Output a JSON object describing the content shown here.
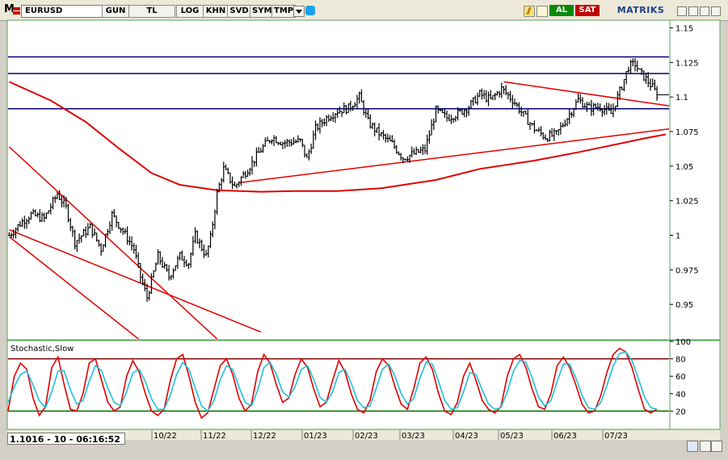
{
  "toolbar": {
    "logo": "M",
    "symbol": "EURUSD",
    "buttons": [
      "GUN",
      "TL",
      "LOG",
      "KHN",
      "SVD",
      "SYM",
      "TMP"
    ],
    "buy_label": "AL",
    "sell_label": "SAT",
    "brand": "MATRIKS",
    "icons": [
      "flag-icon",
      "dropdown-icon",
      "bird-icon",
      "bolt-icon",
      "refresh-icon",
      "minimize-icon",
      "restore-icon",
      "close-icon"
    ]
  },
  "status": {
    "readout": "1.1016 - 10 - 06:16:52"
  },
  "colors": {
    "panel_bg": "#ffffff",
    "frame_border": "#58a558",
    "price_bar": "#000000",
    "channel_line": "#e00000",
    "support_line": "#00007f",
    "stoch_k": "#e00000",
    "stoch_d": "#20c0d8",
    "overbought": "#800000",
    "oversold": "#007000"
  },
  "chart_data": [
    {
      "type": "ohlc",
      "title": "",
      "series_name": "EURUSD",
      "y_ticks": [
        "1.15",
        "1.125",
        "1.1",
        "1.075",
        "1.05",
        "1.025",
        "1",
        "0.975",
        "0.95"
      ],
      "ylim": [
        0.925,
        1.155
      ],
      "x_ticks": [
        "10/22",
        "11/22",
        "12/22",
        "01/23",
        "02/23",
        "03/23",
        "04/23",
        "05/23",
        "06/23",
        "07/23"
      ],
      "grid": false,
      "horizontal_levels": [
        1.129,
        1.117,
        1.0915
      ],
      "moving_average": [
        [
          0,
          1.111
        ],
        [
          19,
          1.0975
        ],
        [
          35,
          1.082
        ],
        [
          50,
          1.063
        ],
        [
          65,
          1.045
        ],
        [
          78,
          1.0365
        ],
        [
          95,
          1.0325
        ],
        [
          115,
          1.0315
        ],
        [
          130,
          1.032
        ],
        [
          150,
          1.032
        ],
        [
          170,
          1.034
        ],
        [
          195,
          1.04
        ],
        [
          215,
          1.048
        ],
        [
          240,
          1.054
        ],
        [
          260,
          1.06
        ],
        [
          275,
          1.065
        ],
        [
          290,
          1.07
        ],
        [
          300,
          1.073
        ]
      ],
      "trend_lines": [
        {
          "from": [
            0,
            1.064
          ],
          "to": [
            95,
            0.925
          ]
        },
        {
          "from": [
            0,
            0.999
          ],
          "to": [
            95,
            0.88
          ]
        },
        {
          "from": [
            0,
            1.004
          ],
          "to": [
            115,
            0.93
          ]
        },
        {
          "from": [
            105,
            1.038
          ],
          "to": [
            302,
            1.077
          ]
        },
        {
          "from": [
            226,
            1.111
          ],
          "to": [
            302,
            1.0935
          ]
        }
      ],
      "price_anchors": [
        [
          0,
          1.0
        ],
        [
          6,
          1.01
        ],
        [
          10,
          1.015
        ],
        [
          16,
          1.012
        ],
        [
          22,
          1.03
        ],
        [
          26,
          1.02
        ],
        [
          30,
          0.995
        ],
        [
          37,
          1.006
        ],
        [
          42,
          0.99
        ],
        [
          47,
          1.015
        ],
        [
          54,
          0.998
        ],
        [
          57,
          0.99
        ],
        [
          60,
          0.97
        ],
        [
          63,
          0.955
        ],
        [
          68,
          0.985
        ],
        [
          73,
          0.97
        ],
        [
          78,
          0.985
        ],
        [
          82,
          0.98
        ],
        [
          85,
          1.0
        ],
        [
          90,
          0.985
        ],
        [
          92,
          0.998
        ],
        [
          95,
          1.03
        ],
        [
          98,
          1.048
        ],
        [
          103,
          1.035
        ],
        [
          110,
          1.05
        ],
        [
          115,
          1.062
        ],
        [
          120,
          1.071
        ],
        [
          125,
          1.067
        ],
        [
          133,
          1.068
        ],
        [
          136,
          1.055
        ],
        [
          140,
          1.077
        ],
        [
          145,
          1.085
        ],
        [
          150,
          1.09
        ],
        [
          155,
          1.092
        ],
        [
          160,
          1.1
        ],
        [
          164,
          1.082
        ],
        [
          168,
          1.075
        ],
        [
          175,
          1.066
        ],
        [
          180,
          1.056
        ],
        [
          185,
          1.059
        ],
        [
          190,
          1.062
        ],
        [
          195,
          1.09
        ],
        [
          200,
          1.085
        ],
        [
          205,
          1.088
        ],
        [
          210,
          1.093
        ],
        [
          215,
          1.102
        ],
        [
          220,
          1.098
        ],
        [
          225,
          1.106
        ],
        [
          230,
          1.098
        ],
        [
          235,
          1.087
        ],
        [
          240,
          1.077
        ],
        [
          245,
          1.071
        ],
        [
          250,
          1.073
        ],
        [
          255,
          1.085
        ],
        [
          260,
          1.098
        ],
        [
          265,
          1.092
        ],
        [
          270,
          1.093
        ],
        [
          275,
          1.088
        ],
        [
          280,
          1.108
        ],
        [
          283,
          1.122
        ],
        [
          286,
          1.124
        ],
        [
          288,
          1.118
        ],
        [
          291,
          1.113
        ],
        [
          294,
          1.107
        ],
        [
          296,
          1.1016
        ]
      ]
    },
    {
      "type": "line",
      "title": "Stochastic,Slow",
      "y_ticks": [
        "100",
        "80",
        "60",
        "40",
        "20"
      ],
      "ylim": [
        0,
        100
      ],
      "levels": [
        80,
        20
      ],
      "series": [
        {
          "values": [
            20,
            60,
            75,
            68,
            35,
            15,
            25,
            70,
            82,
            50,
            22,
            20,
            40,
            75,
            80,
            55,
            30,
            20,
            25,
            60,
            78,
            65,
            40,
            20,
            15,
            22,
            55,
            80,
            85,
            60,
            30,
            12,
            18,
            45,
            72,
            80,
            62,
            35,
            20,
            28,
            65,
            85,
            75,
            50,
            30,
            35,
            62,
            80,
            70,
            45,
            25,
            30,
            55,
            78,
            65,
            40,
            22,
            18,
            32,
            65,
            80,
            72,
            48,
            28,
            22,
            45,
            75,
            82,
            68,
            40,
            20,
            16,
            30,
            60,
            75,
            55,
            32,
            22,
            18,
            25,
            60,
            80,
            85,
            70,
            45,
            25,
            22,
            40,
            72,
            82,
            70,
            50,
            28,
            18,
            20,
            38,
            65,
            85,
            92,
            88,
            70,
            45,
            22,
            18,
            22
          ]
        },
        {
          "values": [
            30,
            48,
            62,
            66,
            50,
            32,
            24,
            42,
            66,
            66,
            44,
            28,
            32,
            54,
            72,
            66,
            46,
            30,
            26,
            42,
            64,
            68,
            54,
            34,
            22,
            22,
            38,
            62,
            76,
            68,
            46,
            26,
            20,
            32,
            56,
            72,
            68,
            48,
            30,
            26,
            44,
            70,
            76,
            62,
            42,
            36,
            48,
            68,
            72,
            56,
            36,
            30,
            42,
            64,
            68,
            52,
            32,
            24,
            26,
            46,
            68,
            74,
            60,
            40,
            28,
            34,
            58,
            76,
            74,
            54,
            32,
            22,
            24,
            42,
            64,
            62,
            44,
            28,
            22,
            24,
            42,
            66,
            78,
            76,
            58,
            36,
            26,
            32,
            54,
            74,
            74,
            58,
            38,
            24,
            22,
            30,
            50,
            72,
            86,
            88,
            78,
            58,
            36,
            24,
            22
          ]
        }
      ]
    }
  ]
}
